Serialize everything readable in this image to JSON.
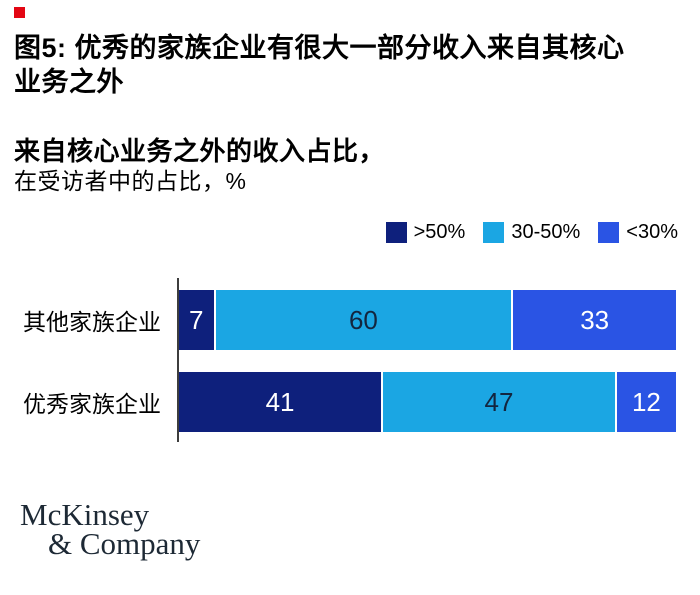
{
  "exhibit_marker_color": "#e30613",
  "header": {
    "title": "图5: 优秀的家族企业有很大一部分收入来自其核心\n业务之外",
    "subtitle_bold": "来自核心业务之外的收入占比，",
    "subtitle_regular": "在受访者中的占比，%"
  },
  "chart_data": {
    "type": "bar",
    "orientation": "horizontal",
    "stacked": true,
    "title": "来自核心业务之外的收入占比，",
    "unit_label": "在受访者中的占比，%",
    "xlim": [
      0,
      100
    ],
    "grid": false,
    "legend_position": "top-right",
    "categories": [
      "其他家族企业",
      "优秀家族企业"
    ],
    "series": [
      {
        "name": ">50%",
        "values": [
          7,
          41
        ]
      },
      {
        "name": "30-50%",
        "values": [
          60,
          47
        ]
      },
      {
        "name": "<30%",
        "values": [
          33,
          12
        ]
      }
    ],
    "legend": [
      {
        "label": ">50%",
        "color": "#0e207c",
        "value_text_color": "#ffffff"
      },
      {
        "label": "30-50%",
        "color": "#1ba6e3",
        "value_text_color": "#13263f"
      },
      {
        "label": "<30%",
        "color": "#2a54e4",
        "value_text_color": "#ffffff"
      }
    ],
    "axis_line_color": "#3d3d3d"
  },
  "footer": {
    "logo_line1": "McKinsey",
    "logo_line2": "& Company"
  }
}
